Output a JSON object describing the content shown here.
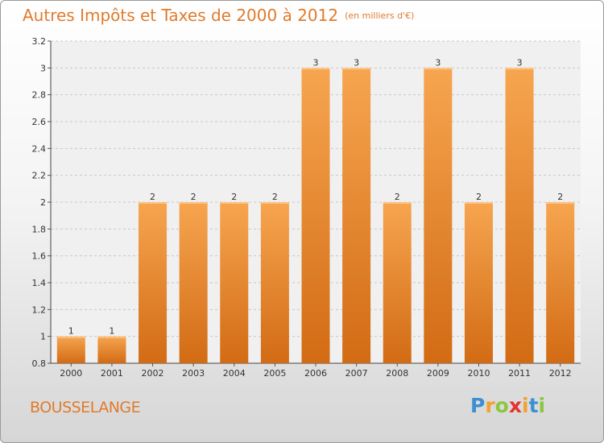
{
  "title": "Autres Impôts et Taxes de 2000 à 2012",
  "subtitle": "(en milliers d'€)",
  "commune": "BOUSSELANGE",
  "logo": {
    "letters": [
      "P",
      "r",
      "o",
      "x",
      "i",
      "t",
      "i"
    ],
    "colors": [
      "#3b8fd4",
      "#f2a12c",
      "#8cc63f",
      "#e3342f",
      "#f2a12c",
      "#3b8fd4",
      "#8cc63f"
    ]
  },
  "chart_data": {
    "type": "bar",
    "categories": [
      "2000",
      "2001",
      "2002",
      "2003",
      "2004",
      "2005",
      "2006",
      "2007",
      "2008",
      "2009",
      "2010",
      "2011",
      "2012"
    ],
    "values": [
      1,
      1,
      2,
      2,
      2,
      2,
      3,
      3,
      2,
      3,
      2,
      3,
      2
    ],
    "data_labels": [
      "1",
      "1",
      "2",
      "2",
      "2",
      "2",
      "3",
      "3",
      "2",
      "3",
      "2",
      "3",
      "2"
    ],
    "ylim": [
      0.8,
      3.2
    ],
    "yticks": [
      0.8,
      1,
      1.2,
      1.4,
      1.6,
      1.8,
      2,
      2.2,
      2.4,
      2.6,
      2.8,
      3,
      3.2
    ],
    "ytick_labels": [
      "0.8",
      "1",
      "1.2",
      "1.4",
      "1.6",
      "1.8",
      "2",
      "2.2",
      "2.4",
      "2.6",
      "2.8",
      "3",
      "3.2"
    ],
    "grid": "horizontal dashed",
    "colors": {
      "bar_top": "#f7a550",
      "bar_bottom": "#d26b14",
      "text": "#333333",
      "accent": "#e07b2c"
    }
  }
}
